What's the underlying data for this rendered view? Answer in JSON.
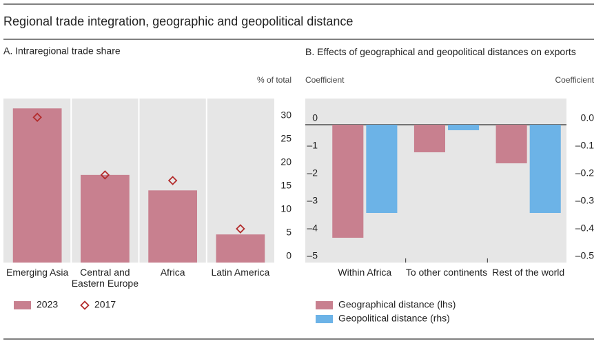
{
  "title": "Regional trade integration, geographic and geopolitical distance",
  "chart_data": [
    {
      "type": "bar",
      "title": "A. Intraregional trade share",
      "y_label": "% of total",
      "categories": [
        "Emerging Asia",
        "Central and Eastern Europe",
        "Africa",
        "Latin America"
      ],
      "series": [
        {
          "name": "2023",
          "color": "#c8808f",
          "values": [
            32.9,
            18.7,
            15.4,
            6.0
          ]
        },
        {
          "name": "2017",
          "color": "#b32b2b",
          "type": "scatter",
          "marker": "diamond",
          "values": [
            31.0,
            18.7,
            17.5,
            7.2
          ]
        }
      ],
      "ylim": [
        0,
        35
      ],
      "yticks": [
        0,
        5,
        10,
        15,
        20,
        25,
        30
      ]
    },
    {
      "type": "bar",
      "title": "B. Effects of geographical and geopolitical distances on exports",
      "y_label": "Coefficient",
      "y2_label": "Coefficient",
      "categories": [
        "Within Africa",
        "To other continents",
        "Rest of the world"
      ],
      "series": [
        {
          "name": "Geographical distance (lhs)",
          "color": "#c8808f",
          "values": [
            -4.1,
            -1.0,
            -1.4
          ]
        },
        {
          "name": "Geopolitical distance (rhs)",
          "color": "#6cb3e7",
          "axis": "y2",
          "values": [
            -0.32,
            -0.02,
            -0.32
          ]
        }
      ],
      "ylim": [
        -5,
        0.95
      ],
      "yticks": [
        0,
        {
          "value": -1,
          "label": "–1"
        },
        {
          "value": -2,
          "label": "–2"
        },
        {
          "value": -3,
          "label": "–3"
        },
        {
          "value": -4,
          "label": "–4"
        },
        {
          "value": -5,
          "label": "–5"
        }
      ],
      "y2lim": [
        -0.5,
        0.095
      ],
      "y2ticks": [
        {
          "value": 0,
          "label": "0.0"
        },
        {
          "value": -0.1,
          "label": "–0.1"
        },
        {
          "value": -0.2,
          "label": "–0.2"
        },
        {
          "value": -0.3,
          "label": "–0.3"
        },
        {
          "value": -0.4,
          "label": "–0.4"
        },
        {
          "value": -0.5,
          "label": "–0.5"
        }
      ]
    }
  ]
}
